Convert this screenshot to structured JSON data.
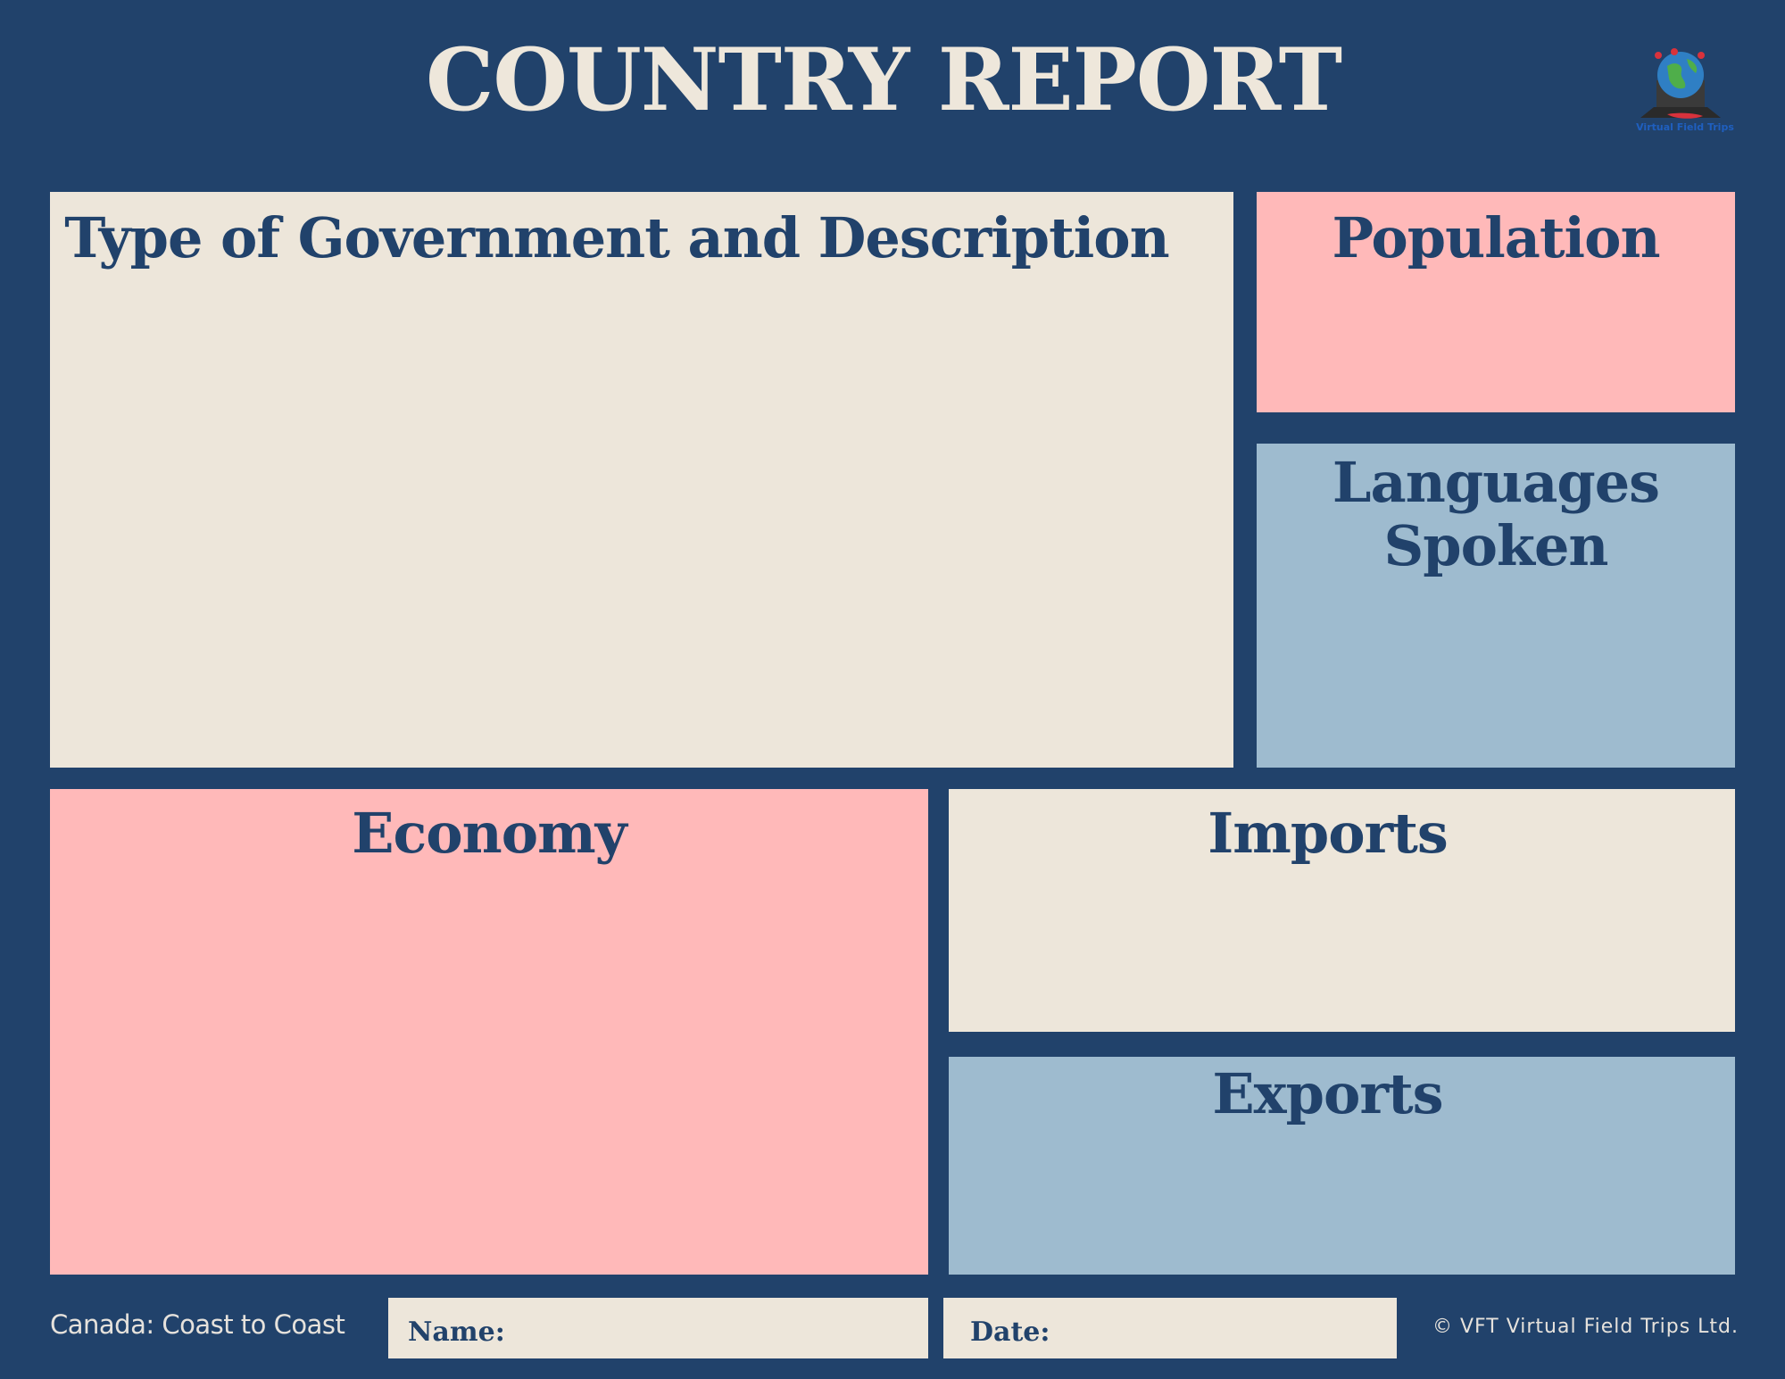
{
  "header": {
    "title": "COUNTRY REPORT",
    "logo_icon": "globe-laptop-icon",
    "logo_text": "Virtual Field Trips"
  },
  "sections": {
    "government": {
      "heading": "Type of Government and Description"
    },
    "population": {
      "heading": "Population"
    },
    "languages": {
      "heading_line1": "Languages",
      "heading_line2": "Spoken"
    },
    "economy": {
      "heading": "Economy"
    },
    "imports": {
      "heading": "Imports"
    },
    "exports": {
      "heading": "Exports"
    }
  },
  "footer": {
    "subtitle": "Canada: Coast to Coast",
    "name_label": "Name:",
    "name_value": "",
    "date_label": "Date:",
    "date_value": "",
    "copyright": "© VFT Virtual Field Trips Ltd."
  },
  "colors": {
    "background": "#21426b",
    "cream": "#ede6da",
    "pink": "#ffb9b9",
    "blue": "#9ebbcf",
    "heading_text": "#21426b",
    "title_text": "#eee7db"
  }
}
